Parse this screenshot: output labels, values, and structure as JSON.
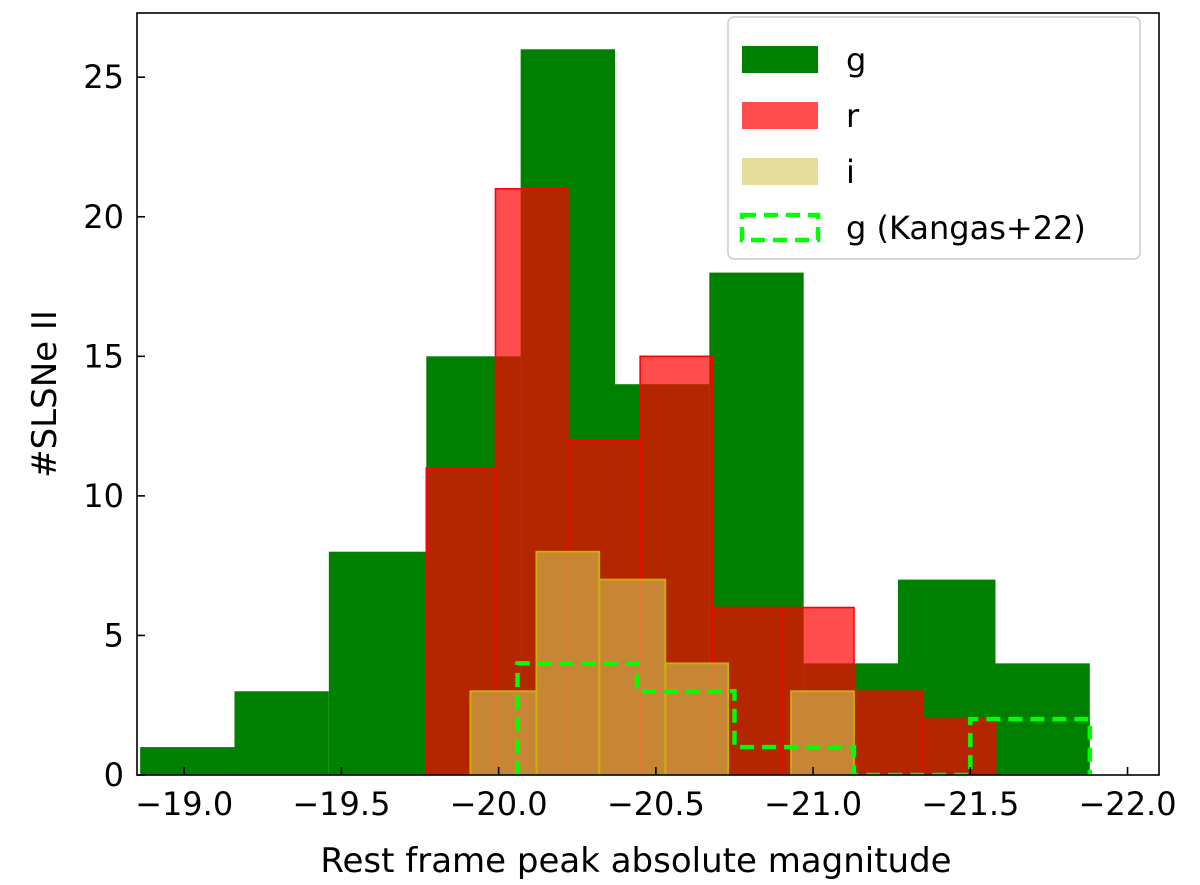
{
  "chart_data": {
    "type": "bar",
    "subtype": "histogram",
    "xlabel": "Rest frame peak absolute magnitude",
    "ylabel": "#SLSNe II",
    "xlim": [
      -18.85,
      -22.1
    ],
    "ylim": [
      0,
      27.3
    ],
    "xticks": [
      -19.0,
      -19.5,
      -20.0,
      -20.5,
      -21.0,
      -21.5,
      -22.0
    ],
    "xtick_labels": [
      "−19.0",
      "−19.5",
      "−20.0",
      "−20.5",
      "−21.0",
      "−21.5",
      "−22.0"
    ],
    "yticks": [
      0,
      5,
      10,
      15,
      20,
      25
    ],
    "ytick_labels": [
      "0",
      "5",
      "10",
      "15",
      "20",
      "25"
    ],
    "legend_position": "top-right",
    "series": [
      {
        "name": "g",
        "style": "filled",
        "color": "#008000",
        "alpha": 1.0,
        "edges": [
          -18.86,
          -19.16,
          -19.46,
          -19.77,
          -20.07,
          -20.37,
          -20.67,
          -20.97,
          -21.27,
          -21.58,
          -21.88,
          -22.18
        ],
        "counts": [
          1,
          3,
          8,
          15,
          26,
          14,
          18,
          4,
          7,
          4,
          0
        ]
      },
      {
        "name": "r",
        "style": "filled",
        "color": "#ff0000",
        "alpha": 0.7,
        "edges": [
          -19.77,
          -19.99,
          -20.22,
          -20.45,
          -20.68,
          -20.9,
          -21.13,
          -21.35,
          -21.58
        ],
        "counts": [
          11,
          21,
          12,
          15,
          6,
          6,
          3,
          2
        ]
      },
      {
        "name": "i",
        "style": "filled",
        "color": "#d4c65a",
        "edge_color": "#c8b400",
        "alpha": 0.6,
        "edges": [
          -19.91,
          -20.12,
          -20.32,
          -20.53,
          -20.73,
          -20.93,
          -21.13
        ],
        "counts": [
          3,
          8,
          7,
          4,
          0,
          3
        ]
      },
      {
        "name": "g (Kangas+22)",
        "style": "step-dashed",
        "color": "#00ff00",
        "edges": [
          -20.06,
          -20.44,
          -20.75,
          -21.13,
          -21.5,
          -21.88
        ],
        "counts": [
          4,
          3,
          1,
          0,
          2
        ]
      }
    ]
  }
}
